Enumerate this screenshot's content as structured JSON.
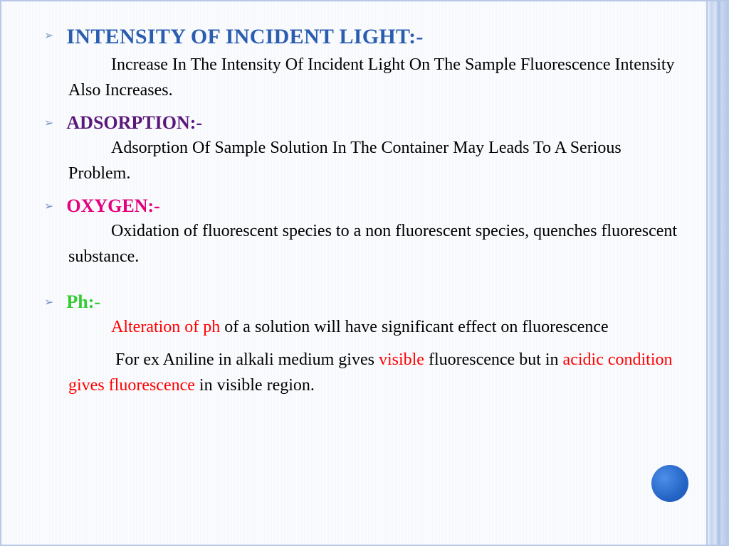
{
  "colors": {
    "heading1": "#2a5db0",
    "heading2": "#5a197a",
    "heading3": "#e6007e",
    "heading4": "#33cc33",
    "bullet": "#7a94c9",
    "red": "#ff0000",
    "body": "#000000"
  },
  "items": [
    {
      "heading": "INTENSITY OF INCIDENT LIGHT:-",
      "heading_color": "#2a5db0",
      "heading_variant": "smallcaps",
      "body": [
        {
          "segments": [
            {
              "text": "Increase In The Intensity Of Incident Light On The Sample Fluorescence Intensity Also Increases."
            }
          ],
          "indent": true
        }
      ]
    },
    {
      "heading": "ADSORPTION:-",
      "heading_color": "#5a197a",
      "body": [
        {
          "segments": [
            {
              "text": "Adsorption Of Sample Solution In The Container May Leads To A Serious Problem."
            }
          ],
          "indent": true
        }
      ]
    },
    {
      "heading": "OXYGEN:-",
      "heading_color": "#e6007e",
      "body": [
        {
          "segments": [
            {
              "text": "Oxidation of fluorescent species to a non fluorescent species, quenches fluorescent substance."
            }
          ],
          "indent": true
        }
      ],
      "gap_after": 28
    },
    {
      "heading": "Ph:-",
      "heading_color": "#33cc33",
      "body": [
        {
          "segments": [
            {
              "text": "Alteration of  ph ",
              "color": "#ff0000"
            },
            {
              "text": "of a solution will have significant effect on fluorescence"
            }
          ],
          "indent": true
        },
        {
          "segments": [
            {
              "text": " For ex Aniline in alkali medium gives "
            },
            {
              "text": "visible",
              "color": "#ff0000"
            },
            {
              "text": " fluorescence but in "
            },
            {
              "text": "acidic condition gives fluorescence",
              "color": "#ff0000"
            },
            {
              "text": " in visible region."
            }
          ],
          "indent": true
        }
      ]
    }
  ]
}
